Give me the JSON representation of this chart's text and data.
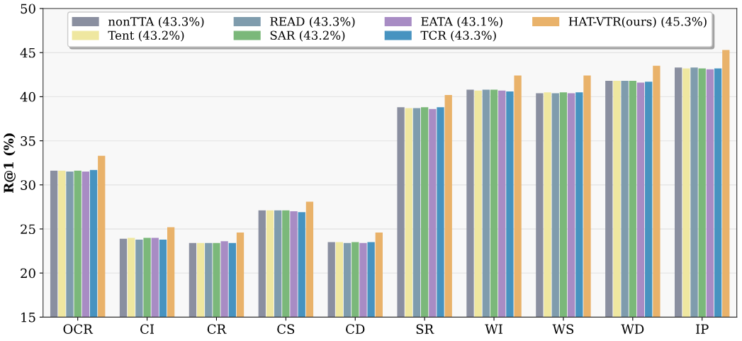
{
  "chart_data": {
    "type": "bar",
    "ylabel": "R@1 (%)",
    "categories": [
      "OCR",
      "CI",
      "CR",
      "CS",
      "CD",
      "SR",
      "WI",
      "WS",
      "WD",
      "IP"
    ],
    "series": [
      {
        "name": "nonTTA (43.3%)",
        "color": "#8a8fa0",
        "values": [
          31.6,
          23.9,
          23.4,
          27.1,
          23.5,
          38.8,
          40.8,
          40.4,
          41.8,
          43.3
        ]
      },
      {
        "name": "Tent (43.2%)",
        "color": "#efe7a0",
        "values": [
          31.6,
          24.0,
          23.4,
          27.1,
          23.5,
          38.7,
          40.7,
          40.5,
          41.8,
          43.2
        ]
      },
      {
        "name": "READ (43.3%)",
        "color": "#7f9cad",
        "values": [
          31.5,
          23.8,
          23.4,
          27.1,
          23.4,
          38.7,
          40.8,
          40.4,
          41.8,
          43.3
        ]
      },
      {
        "name": "SAR (43.2%)",
        "color": "#7bb87a",
        "values": [
          31.6,
          24.0,
          23.4,
          27.1,
          23.5,
          38.8,
          40.8,
          40.5,
          41.8,
          43.2
        ]
      },
      {
        "name": "EATA (43.1%)",
        "color": "#a88cc4",
        "values": [
          31.5,
          24.0,
          23.6,
          27.0,
          23.4,
          38.6,
          40.7,
          40.4,
          41.6,
          43.1
        ]
      },
      {
        "name": "TCR (43.3%)",
        "color": "#4793c0",
        "values": [
          31.7,
          23.8,
          23.4,
          26.9,
          23.5,
          38.8,
          40.6,
          40.5,
          41.7,
          43.2
        ]
      },
      {
        "name": "HAT-VTR(ours) (45.3%)",
        "color": "#e9b26a",
        "values": [
          33.3,
          25.2,
          24.6,
          28.1,
          24.6,
          40.2,
          42.4,
          42.4,
          43.5,
          45.3
        ]
      }
    ],
    "ylim": [
      15,
      50
    ],
    "yticks": [
      15,
      20,
      25,
      30,
      35,
      40,
      45,
      50
    ],
    "grid": "y",
    "legend": "top"
  }
}
